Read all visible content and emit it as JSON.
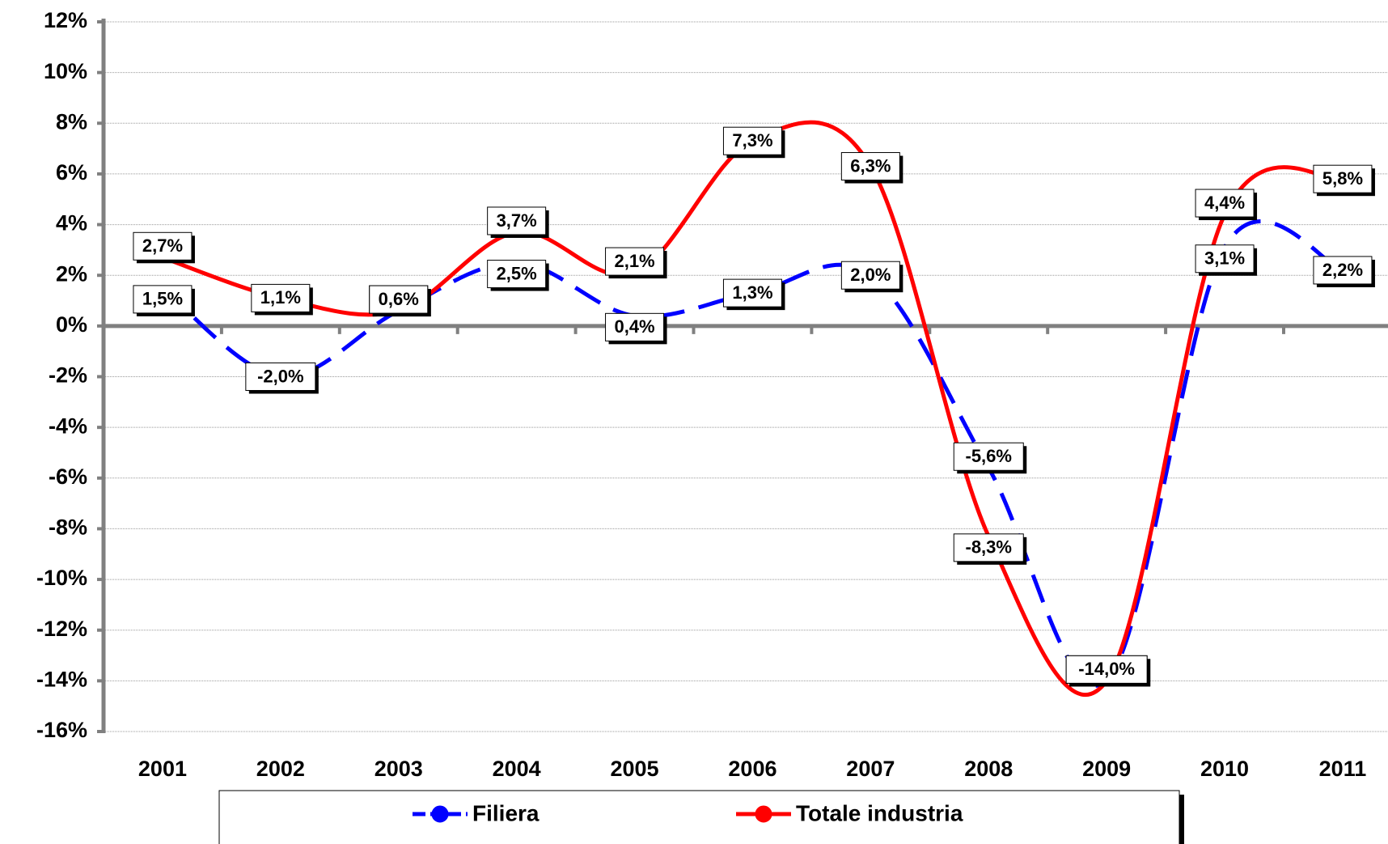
{
  "chart_data": {
    "type": "line",
    "categories": [
      "2001",
      "2002",
      "2003",
      "2004",
      "2005",
      "2006",
      "2007",
      "2008",
      "2009",
      "2010",
      "2011"
    ],
    "series": [
      {
        "name": "Filiera",
        "color": "#0000ff",
        "dashed": true,
        "values": [
          1.5,
          -2.0,
          0.6,
          2.5,
          0.4,
          1.3,
          2.0,
          -5.6,
          -14.0,
          3.1,
          2.2
        ],
        "value_labels": [
          "1,5%",
          "-2,0%",
          "0,6%",
          "2,5%",
          "0,4%",
          "1,3%",
          "2,0%",
          "-5,6%",
          "-14,0%",
          "3,1%",
          "2,2%"
        ]
      },
      {
        "name": "Totale industria",
        "color": "#ff0000",
        "dashed": false,
        "values": [
          2.7,
          1.1,
          0.6,
          3.7,
          2.1,
          7.3,
          6.3,
          -8.3,
          -14.0,
          4.4,
          5.8
        ],
        "value_labels": [
          "2,7%",
          "1,1%",
          "0,6%",
          "3,7%",
          "2,1%",
          "7,3%",
          "6,3%",
          "-8,3%",
          "-14,0%",
          "4,4%",
          "5,8%"
        ]
      }
    ],
    "ylim": [
      -16,
      12
    ],
    "yticks": [
      {
        "value": -16,
        "label": "-16%"
      },
      {
        "value": -14,
        "label": "-14%"
      },
      {
        "value": -12,
        "label": "-12%"
      },
      {
        "value": -10,
        "label": "-10%"
      },
      {
        "value": -8,
        "label": "-8%"
      },
      {
        "value": -6,
        "label": "-6%"
      },
      {
        "value": -4,
        "label": "-4%"
      },
      {
        "value": -2,
        "label": "-2%"
      },
      {
        "value": 0,
        "label": "0%"
      },
      {
        "value": 2,
        "label": "2%"
      },
      {
        "value": 4,
        "label": "4%"
      },
      {
        "value": 6,
        "label": "6%"
      },
      {
        "value": 8,
        "label": "8%"
      },
      {
        "value": 10,
        "label": "10%"
      },
      {
        "value": 12,
        "label": "12%"
      }
    ],
    "grid": true,
    "legend": "bottom"
  }
}
